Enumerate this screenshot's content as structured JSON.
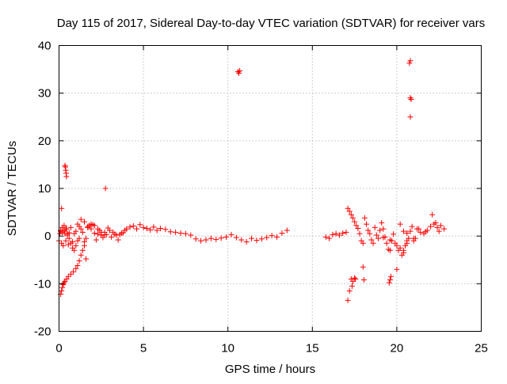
{
  "chart_data": {
    "type": "scatter",
    "title": "Day 115 of 2017, Sidereal Day-to-day VTEC variation (SDTVAR) for receiver vars",
    "xlabel": "GPS time / hours",
    "ylabel": "SDTVAR / TECUs",
    "xlim": [
      0,
      25
    ],
    "ylim": [
      -20,
      40
    ],
    "xticks": [
      0,
      5,
      10,
      15,
      20,
      25
    ],
    "yticks": [
      -20,
      -10,
      0,
      10,
      20,
      30,
      40
    ],
    "grid": true,
    "marker": "+",
    "color": "#ff0000",
    "series": [
      {
        "name": "SDTVAR",
        "x": [
          0.0,
          0.05,
          0.1,
          0.15,
          0.2,
          0.25,
          0.3,
          0.35,
          0.4,
          0.45,
          0.5,
          0.55,
          0.6,
          0.7,
          0.8,
          0.9,
          1.0,
          1.1,
          1.2,
          1.3,
          1.4,
          1.5,
          1.6,
          1.7,
          1.8,
          1.9,
          2.0,
          2.1,
          2.2,
          2.3,
          2.4,
          2.5,
          2.6,
          2.7,
          2.8,
          2.9,
          3.0,
          3.1,
          3.2,
          3.3,
          3.4,
          3.5,
          3.6,
          3.7,
          3.8,
          3.9,
          4.0,
          4.2,
          4.4,
          4.6,
          4.8,
          5.0,
          5.2,
          5.4,
          5.6,
          5.8,
          6.0,
          6.3,
          6.6,
          6.9,
          7.2,
          7.5,
          7.8,
          8.1,
          8.4,
          8.7,
          9.0,
          9.3,
          9.6,
          9.9,
          10.2,
          10.5,
          10.8,
          11.1,
          11.4,
          11.7,
          12.0,
          12.3,
          12.6,
          12.9,
          13.2,
          13.5,
          0.1,
          0.15,
          0.2,
          0.25,
          0.3,
          0.35,
          0.45,
          0.55,
          0.7,
          0.85,
          1.0,
          1.1,
          1.2,
          1.3,
          1.4,
          1.5,
          0.1,
          0.2,
          0.3,
          0.4,
          0.5,
          0.6,
          0.7,
          0.8,
          0.9,
          1.0,
          1.1,
          1.2,
          1.3,
          1.5,
          1.7,
          1.9,
          2.1,
          2.3,
          2.5,
          2.7,
          0.35,
          0.38,
          0.4,
          0.42,
          0.44,
          0.15,
          1.6,
          2.75,
          10.6,
          10.65,
          10.7,
          15.8,
          16.0,
          16.2,
          16.4,
          16.6,
          16.8,
          17.0,
          17.1,
          17.2,
          17.3,
          17.4,
          17.5,
          17.6,
          17.7,
          17.8,
          17.9,
          18.0,
          18.1,
          18.2,
          18.3,
          18.4,
          18.5,
          18.6,
          18.7,
          18.8,
          18.9,
          19.0,
          19.1,
          19.2,
          19.3,
          19.4,
          19.5,
          19.6,
          19.7,
          19.8,
          19.9,
          20.0,
          20.1,
          20.2,
          20.3,
          20.4,
          20.5,
          20.6,
          20.7,
          20.8,
          20.9,
          21.0,
          21.2,
          21.4,
          21.6,
          21.8,
          22.0,
          22.2,
          22.4,
          22.6,
          22.8,
          17.4,
          17.5,
          17.35,
          17.55,
          18.0,
          18.05,
          17.1,
          17.2,
          17.3,
          19.6,
          19.65,
          19.55,
          20.0,
          20.2,
          20.4,
          20.6,
          21.0,
          22.1,
          20.75,
          20.8,
          20.85,
          20.8,
          20.8,
          19.2,
          19.6,
          20.4,
          20.6,
          21.1,
          21.3,
          21.7,
          22.3,
          22.5
        ],
        "y": [
          -1,
          0.5,
          1,
          -1.5,
          0.8,
          -2,
          1.2,
          0.5,
          -1,
          1.5,
          0.2,
          -1.8,
          0.7,
          1.8,
          -1.2,
          0.5,
          1,
          2.5,
          -0.5,
          1.5,
          0.8,
          -1.2,
          -0.5,
          1.8,
          2.2,
          1.5,
          2.4,
          0.6,
          -0.8,
          0.4,
          1.2,
          0.2,
          -0.3,
          0.8,
          0.3,
          1.7,
          1.2,
          -0.2,
          0.8,
          0.4,
          0.2,
          -0.8,
          0.3,
          0.6,
          0.7,
          1.2,
          1.5,
          1.9,
          2.1,
          1.5,
          2.4,
          1.8,
          1.6,
          1.3,
          1.9,
          1.2,
          1.6,
          1.4,
          0.9,
          0.8,
          0.6,
          0.5,
          0.2,
          -0.6,
          -1.0,
          -0.8,
          -0.5,
          -0.7,
          -0.4,
          -0.2,
          0.3,
          -0.3,
          -0.8,
          -1.2,
          -0.5,
          -0.9,
          -0.6,
          -0.3,
          0.1,
          -0.2,
          0.6,
          1.2,
          -12.2,
          -11.5,
          -10.8,
          -10.2,
          -9.8,
          -9.5,
          -9.0,
          -8.5,
          -8.0,
          -7.5,
          -6.8,
          -6.2,
          -5.2,
          -4.0,
          -3.0,
          -2.0,
          1.2,
          1.8,
          2.2,
          1.5,
          0.5,
          -0.5,
          -1.5,
          -2.5,
          -3,
          -2,
          -1,
          2,
          3.5,
          3,
          2,
          2.5,
          2.2,
          1.5,
          0.8,
          0.3,
          14.8,
          14.5,
          13.8,
          13.2,
          12.5,
          5.8,
          -4.8,
          10.0,
          34.5,
          34.2,
          34.7,
          -0.2,
          -0.5,
          0.3,
          0.5,
          0.2,
          0.6,
          0.8,
          5.8,
          5.2,
          4.5,
          3.8,
          3.0,
          2.2,
          1.6,
          0.5,
          -1.0,
          -1.5,
          3.8,
          2.5,
          1.2,
          0.5,
          -0.8,
          -1.5,
          1.8,
          0.2,
          -0.5,
          1.2,
          2.8,
          1.5,
          -0.2,
          -1.5,
          -2.8,
          -3.0,
          -1.0,
          0.4,
          -1.5,
          -2.0,
          -3.0,
          -2.5,
          -4.0,
          -3.5,
          -2.0,
          -1.0,
          -0.5,
          1.0,
          2.0,
          -1.0,
          1.5,
          0.8,
          0.5,
          1.2,
          2.0,
          2.5,
          1.8,
          2.2,
          1.5,
          -9.5,
          -8.8,
          -10.5,
          -9.0,
          -6.5,
          -9.2,
          -13.5,
          -11.5,
          -9.0,
          -9.2,
          -8.5,
          -9.8,
          -7.0,
          2.5,
          -3.0,
          -1.5,
          -0.5,
          4.5,
          36.3,
          36.8,
          28.7,
          25.0,
          29.0,
          -0.3,
          -0.8,
          1.0,
          0.6,
          -0.5,
          1.5,
          0.9,
          2.8,
          1.0
        ]
      }
    ]
  }
}
